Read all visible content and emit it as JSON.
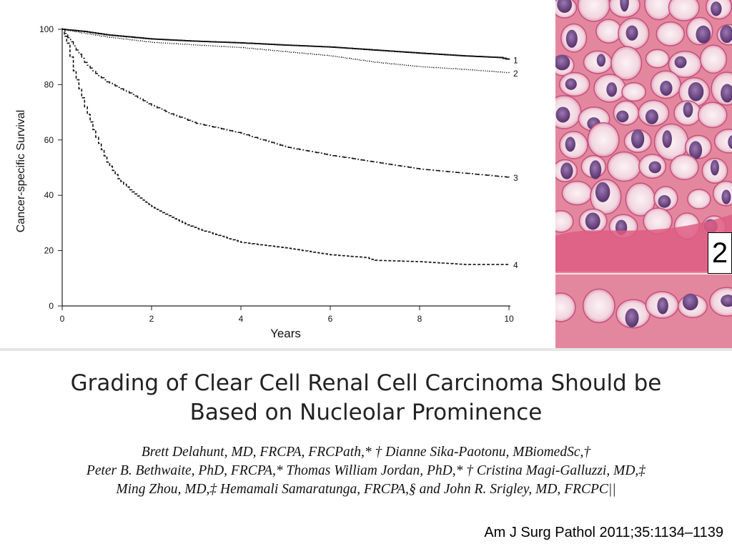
{
  "chart_data": {
    "type": "line",
    "xlabel": "Years",
    "ylabel": "Cancer-specific Survival",
    "xlim": [
      0,
      10
    ],
    "ylim": [
      0,
      100
    ],
    "xticks": [
      0,
      2,
      4,
      6,
      8,
      10
    ],
    "yticks": [
      0,
      20,
      40,
      60,
      80,
      100
    ],
    "grid": false,
    "legend": "none; series labelled 1–4 at right end of each curve",
    "series": [
      {
        "label": "1",
        "style": "solid",
        "x": [
          0,
          0.5,
          1,
          2,
          3,
          4,
          5,
          6,
          7,
          8,
          9,
          9.8,
          10
        ],
        "y": [
          100,
          99.2,
          98,
          96.5,
          95.7,
          95.1,
          94.3,
          93.6,
          92.5,
          91.4,
          90.4,
          89.8,
          89
        ]
      },
      {
        "label": "2",
        "style": "dotted",
        "x": [
          0,
          0.5,
          1,
          2,
          3,
          4,
          5,
          6,
          7,
          8,
          9,
          10
        ],
        "y": [
          100,
          98.5,
          97.2,
          95.3,
          94.3,
          93.4,
          91.9,
          90.4,
          88.1,
          86.5,
          85.5,
          84.3
        ]
      },
      {
        "label": "3",
        "style": "dash-dot",
        "x": [
          0,
          0.25,
          0.5,
          0.75,
          1,
          1.5,
          2,
          2.5,
          3,
          4,
          5,
          6,
          7,
          8,
          9,
          10
        ],
        "y": [
          100,
          94,
          88,
          84,
          81,
          77,
          72.5,
          69,
          66,
          62.5,
          57.5,
          54.5,
          52,
          49.5,
          48,
          46.5
        ]
      },
      {
        "label": "4",
        "style": "dashed",
        "x": [
          0,
          0.1,
          0.25,
          0.5,
          0.75,
          1,
          1.25,
          1.5,
          2,
          2.5,
          3,
          3.5,
          4,
          5,
          6,
          6.8,
          7,
          8,
          9,
          10
        ],
        "y": [
          100,
          95,
          85,
          72,
          61,
          52,
          46,
          42,
          36,
          31.5,
          28,
          25.5,
          23,
          21,
          18.5,
          17.5,
          16.5,
          16,
          15,
          15
        ]
      }
    ]
  },
  "panel_number": "2",
  "paper": {
    "title_line1": "Grading of Clear Cell Renal Cell Carcinoma Should be",
    "title_line2": "Based on Nucleolar Prominence",
    "authors_line1": "Brett Delahunt, MD, FRCPA, FRCPath,* † Dianne Sika-Paotonu, MBiomedSc,†",
    "authors_line2": "Peter B. Bethwaite, PhD, FRCPA,* Thomas William Jordan, PhD,* † Cristina Magi-Galluzzi, MD,‡",
    "authors_line3": "Ming Zhou, MD,‡ Hemamali Samaratunga, FRCPA,§ and John R. Srigley, MD, FRCPC||",
    "citation": "Am J Surg Pathol 2011;35:1134–1139"
  },
  "colors": {
    "histology_stroma": "#e48aa6",
    "histology_nuclei": "#6a3f7e",
    "histology_clear_cytoplasm": "#f7ecf1"
  }
}
